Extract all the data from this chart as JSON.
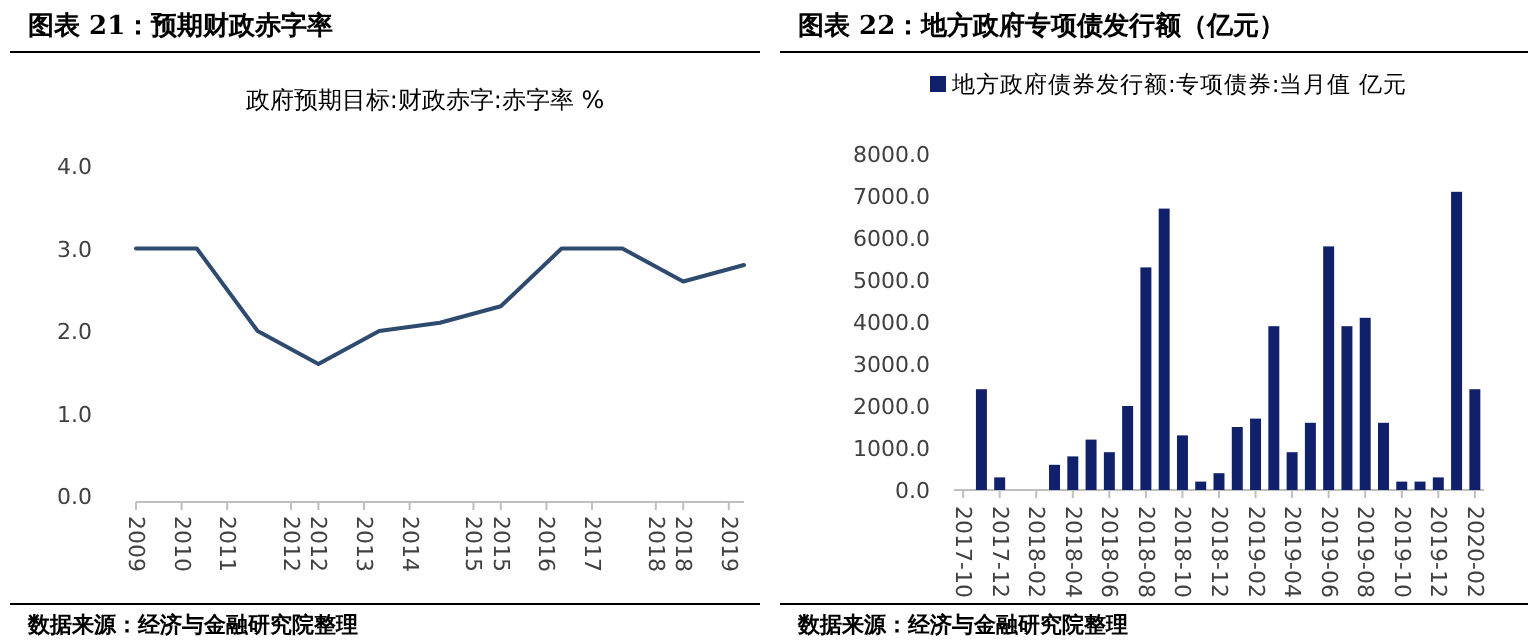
{
  "chart_data": [
    {
      "type": "line",
      "title": "图表 21：预期财政赤字率",
      "subtitle": "政府预期目标:财政赤字:赤字率  %",
      "x": [
        2009,
        2010,
        2011,
        2012,
        2013,
        2014,
        2015,
        2016,
        2017,
        2018,
        2019
      ],
      "xlim": [
        2009,
        2019
      ],
      "xticks": [
        {
          "value": 2009,
          "label": "2009"
        },
        {
          "value": 2009.75,
          "label": "2010"
        },
        {
          "value": 2010.5,
          "label": "2011"
        },
        {
          "value": 2011.55,
          "label": "2012"
        },
        {
          "value": 2012,
          "label": "2012"
        },
        {
          "value": 2012.75,
          "label": "2013"
        },
        {
          "value": 2013.5,
          "label": "2014"
        },
        {
          "value": 2014.55,
          "label": "2015"
        },
        {
          "value": 2015,
          "label": "2015"
        },
        {
          "value": 2015.75,
          "label": "2016"
        },
        {
          "value": 2016.5,
          "label": "2017"
        },
        {
          "value": 2017.55,
          "label": "2018"
        },
        {
          "value": 2018,
          "label": "2018"
        },
        {
          "value": 2018.75,
          "label": "2019"
        }
      ],
      "ylim": [
        0,
        4
      ],
      "yticks": [
        {
          "value": 0,
          "label": "0.0"
        },
        {
          "value": 1,
          "label": "1.0"
        },
        {
          "value": 2,
          "label": "2.0"
        },
        {
          "value": 3,
          "label": "3.0"
        },
        {
          "value": 4,
          "label": "4.0"
        }
      ],
      "series": [
        {
          "color": "#2e4a6e",
          "values": [
            3.0,
            3.0,
            2.0,
            1.6,
            2.0,
            2.1,
            2.3,
            3.0,
            3.0,
            2.6,
            2.8
          ]
        }
      ],
      "annotations": [
        "数据来源：经济与金融研究院整理"
      ]
    },
    {
      "type": "bar",
      "title": "图表 22：地方政府专项债发行额（亿元）",
      "categories": [
        "2017-10",
        null,
        "2017-12",
        null,
        "2018-02",
        null,
        "2018-04",
        null,
        "2018-06",
        null,
        "2018-08",
        null,
        "2018-10",
        null,
        "2018-12",
        null,
        "2019-02",
        null,
        "2019-04",
        null,
        "2019-06",
        null,
        "2019-08",
        null,
        "2019-10",
        null,
        "2019-12",
        null,
        "2020-02"
      ],
      "ylim": [
        0,
        8000
      ],
      "yticks": [
        {
          "value": 0,
          "label": "0.0"
        },
        {
          "value": 1000,
          "label": "1000.0"
        },
        {
          "value": 2000,
          "label": "2000.0"
        },
        {
          "value": 3000,
          "label": "3000.0"
        },
        {
          "value": 4000,
          "label": "4000.0"
        },
        {
          "value": 5000,
          "label": "5000.0"
        },
        {
          "value": 6000,
          "label": "6000.0"
        },
        {
          "value": 7000,
          "label": "7000.0"
        },
        {
          "value": 8000,
          "label": "8000.0"
        }
      ],
      "legend": "top",
      "series": [
        {
          "name": "地方政府债券发行额:专项债券:当月值  亿元",
          "color": "#10206b",
          "values": [
            0,
            2400,
            300,
            0,
            0,
            600,
            800,
            1200,
            900,
            2000,
            5300,
            6700,
            1300,
            200,
            400,
            1500,
            1700,
            3900,
            900,
            1600,
            5800,
            3900,
            4100,
            1600,
            200,
            200,
            300,
            7100,
            2400
          ]
        }
      ],
      "annotations": [
        "数据来源：经济与金融研究院整理"
      ]
    }
  ]
}
